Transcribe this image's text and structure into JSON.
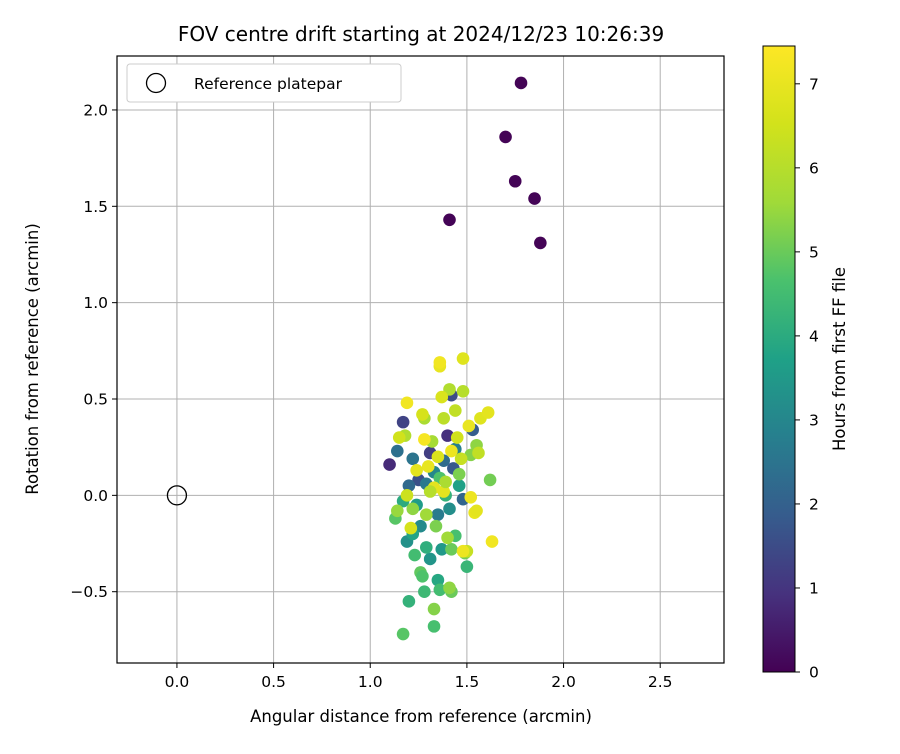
{
  "chart_data": {
    "type": "scatter",
    "title": "FOV centre drift starting at 2024/12/23 10:26:39",
    "xlabel": "Angular distance from reference (arcmin)",
    "ylabel": "Rotation from reference (arcmin)",
    "xlim": [
      -0.31,
      2.83
    ],
    "ylim": [
      -0.87,
      2.28
    ],
    "xticks": [
      0.0,
      0.5,
      1.0,
      1.5,
      2.0,
      2.5
    ],
    "xtick_labels": [
      "0.0",
      "0.5",
      "1.0",
      "1.5",
      "2.0",
      "2.5"
    ],
    "yticks": [
      -0.5,
      0.0,
      0.5,
      1.0,
      1.5,
      2.0
    ],
    "ytick_labels": [
      "−0.5",
      "0.0",
      "0.5",
      "1.0",
      "1.5",
      "2.0"
    ],
    "grid": true,
    "legend": {
      "placement": "top-left",
      "entries": [
        "Reference platepar"
      ]
    },
    "reference_point": {
      "x": 0.0,
      "y": 0.0
    },
    "colorbar": {
      "label": "Hours from first FF file",
      "colormap": "viridis",
      "range": [
        0,
        7.45
      ],
      "ticks": [
        0,
        1,
        2,
        3,
        4,
        5,
        6,
        7
      ],
      "tick_labels": [
        "0",
        "1",
        "2",
        "3",
        "4",
        "5",
        "6",
        "7"
      ]
    },
    "points": [
      [
        1.78,
        2.14,
        0.05
      ],
      [
        1.7,
        1.86,
        0.05
      ],
      [
        1.75,
        1.63,
        0.05
      ],
      [
        1.85,
        1.54,
        0.05
      ],
      [
        1.41,
        1.43,
        0.05
      ],
      [
        1.88,
        1.31,
        0.05
      ],
      [
        1.1,
        0.16,
        0.8
      ],
      [
        1.17,
        0.38,
        1.3
      ],
      [
        1.42,
        0.52,
        1.5
      ],
      [
        1.4,
        0.31,
        0.9
      ],
      [
        1.31,
        0.22,
        1.2
      ],
      [
        1.25,
        0.08,
        1.6
      ],
      [
        1.43,
        0.14,
        1.8
      ],
      [
        1.53,
        0.34,
        1.9
      ],
      [
        1.48,
        -0.02,
        2.1
      ],
      [
        1.38,
        0.18,
        2.3
      ],
      [
        1.2,
        0.05,
        2.2
      ],
      [
        1.14,
        0.23,
        2.4
      ],
      [
        1.29,
        0.06,
        2.6
      ],
      [
        1.35,
        -0.1,
        2.7
      ],
      [
        1.44,
        0.24,
        2.8
      ],
      [
        1.22,
        0.19,
        2.5
      ],
      [
        1.33,
        0.12,
        3.0
      ],
      [
        1.26,
        -0.16,
        3.1
      ],
      [
        1.41,
        -0.07,
        3.2
      ],
      [
        1.19,
        -0.24,
        3.3
      ],
      [
        1.31,
        -0.33,
        3.4
      ],
      [
        1.37,
        -0.28,
        3.5
      ],
      [
        1.24,
        -0.05,
        3.6
      ],
      [
        1.46,
        0.05,
        3.7
      ],
      [
        1.22,
        -0.2,
        3.8
      ],
      [
        1.35,
        -0.44,
        3.9
      ],
      [
        1.17,
        -0.03,
        4.0
      ],
      [
        1.29,
        -0.27,
        4.1
      ],
      [
        1.39,
        0.0,
        4.2
      ],
      [
        1.5,
        -0.37,
        4.3
      ],
      [
        1.28,
        -0.5,
        4.4
      ],
      [
        1.23,
        -0.31,
        4.5
      ],
      [
        1.44,
        -0.21,
        4.6
      ],
      [
        1.36,
        0.09,
        4.7
      ],
      [
        1.13,
        -0.12,
        4.8
      ],
      [
        1.26,
        -0.4,
        4.9
      ],
      [
        1.42,
        -0.28,
        5.0
      ],
      [
        1.49,
        -0.3,
        5.1
      ],
      [
        1.33,
        -0.68,
        4.6
      ],
      [
        1.17,
        -0.72,
        4.8
      ],
      [
        1.2,
        -0.55,
        4.2
      ],
      [
        1.36,
        -0.49,
        4.5
      ],
      [
        1.42,
        -0.5,
        5.0
      ],
      [
        1.27,
        -0.42,
        4.7
      ],
      [
        1.62,
        0.08,
        5.1
      ],
      [
        1.52,
        0.21,
        5.3
      ],
      [
        1.55,
        0.26,
        5.4
      ],
      [
        1.46,
        0.11,
        5.2
      ],
      [
        1.34,
        -0.16,
        5.2
      ],
      [
        1.22,
        -0.07,
        5.4
      ],
      [
        1.14,
        -0.08,
        5.5
      ],
      [
        1.4,
        -0.22,
        5.6
      ],
      [
        1.33,
        -0.59,
        5.3
      ],
      [
        1.41,
        -0.48,
        5.4
      ],
      [
        1.32,
        0.28,
        5.7
      ],
      [
        1.28,
        0.4,
        5.8
      ],
      [
        1.18,
        0.31,
        5.9
      ],
      [
        1.41,
        0.55,
        5.9
      ],
      [
        1.48,
        0.54,
        6.0
      ],
      [
        1.38,
        0.4,
        6.1
      ],
      [
        1.44,
        0.44,
        6.2
      ],
      [
        1.56,
        0.22,
        6.2
      ],
      [
        1.5,
        -0.29,
        6.3
      ],
      [
        1.19,
        0.0,
        6.4
      ],
      [
        1.15,
        0.3,
        6.5
      ],
      [
        1.27,
        0.42,
        6.6
      ],
      [
        1.37,
        0.51,
        6.7
      ],
      [
        1.48,
        0.71,
        6.8
      ],
      [
        1.36,
        0.67,
        7.0
      ],
      [
        1.36,
        0.69,
        7.2
      ],
      [
        1.19,
        0.48,
        7.2
      ],
      [
        1.28,
        0.29,
        7.3
      ],
      [
        1.3,
        0.15,
        7.0
      ],
      [
        1.33,
        0.04,
        6.9
      ],
      [
        1.42,
        0.23,
        7.1
      ],
      [
        1.38,
        0.02,
        6.9
      ],
      [
        1.51,
        0.36,
        7.0
      ],
      [
        1.57,
        0.4,
        6.8
      ],
      [
        1.61,
        0.43,
        6.9
      ],
      [
        1.52,
        -0.01,
        7.1
      ],
      [
        1.54,
        -0.09,
        7.0
      ],
      [
        1.55,
        -0.08,
        6.9
      ],
      [
        1.48,
        -0.29,
        7.1
      ],
      [
        1.63,
        -0.24,
        7.2
      ],
      [
        1.35,
        0.2,
        6.7
      ],
      [
        1.21,
        -0.17,
        6.6
      ],
      [
        1.24,
        0.13,
        6.9
      ],
      [
        1.45,
        0.3,
        6.5
      ],
      [
        1.39,
        0.07,
        5.8
      ],
      [
        1.31,
        0.02,
        6.0
      ],
      [
        1.47,
        0.19,
        6.3
      ],
      [
        1.29,
        -0.1,
        5.6
      ]
    ]
  }
}
